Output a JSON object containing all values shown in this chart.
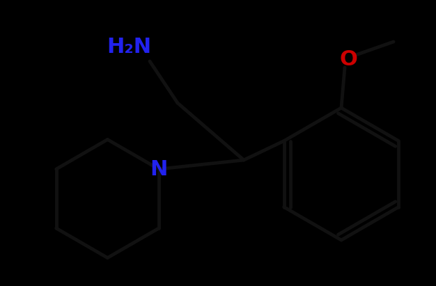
{
  "background_color": "#000000",
  "line_color": "#111111",
  "line_width": 3.5,
  "N_color": "#2222ee",
  "O_color": "#cc0000",
  "label_H2N": "H₂N",
  "label_N": "N",
  "label_O": "O",
  "label_fontsize": 22,
  "label_fontsize_small": 18
}
